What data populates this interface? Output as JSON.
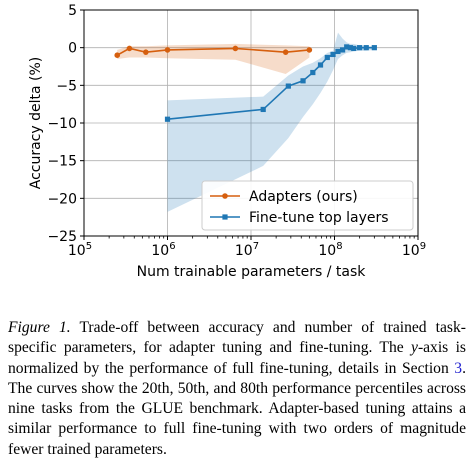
{
  "chart_data": {
    "type": "line",
    "xlabel": "Num trainable parameters / task",
    "ylabel": "Accuracy delta (%)",
    "xscale": "log",
    "xlim": [
      100000,
      1000000000
    ],
    "ylim": [
      -25,
      5
    ],
    "x_ticks": [
      100000,
      1000000,
      10000000,
      100000000,
      1000000000
    ],
    "x_tick_labels": [
      {
        "base": "10",
        "exp": "5"
      },
      {
        "base": "10",
        "exp": "6"
      },
      {
        "base": "10",
        "exp": "7"
      },
      {
        "base": "10",
        "exp": "8"
      },
      {
        "base": "10",
        "exp": "9"
      }
    ],
    "y_ticks": [
      5,
      0,
      -5,
      -10,
      -15,
      -20,
      -25
    ],
    "y_tick_labels": [
      "5",
      "0",
      "−5",
      "−10",
      "−15",
      "−20",
      "−25"
    ],
    "grid": true,
    "legend_position": "lower-right",
    "series": [
      {
        "name": "Adapters (ours)",
        "color": "#d65f0e",
        "marker": "circle",
        "x": [
          250000,
          350000,
          550000,
          1000000,
          6500000,
          26000000,
          50000000
        ],
        "y": [
          -1.0,
          -0.1,
          -0.6,
          -0.3,
          -0.1,
          -0.6,
          -0.3
        ],
        "band_low": [
          -1.5,
          -1.3,
          -1.3,
          -1.4,
          -1.6,
          -3.5,
          -1.3
        ],
        "band_high": [
          -0.3,
          0.2,
          0.2,
          0.3,
          0.5,
          0.3,
          0.2
        ]
      },
      {
        "name": "Fine-tune top layers",
        "color": "#1f77b4",
        "marker": "square",
        "x": [
          1000000,
          14000000,
          28000000,
          42000000,
          55000000,
          68000000,
          82000000,
          96000000,
          110000000,
          125000000,
          140000000,
          155000000,
          170000000,
          200000000,
          240000000,
          300000000
        ],
        "y": [
          -9.5,
          -8.2,
          -5.1,
          -4.4,
          -3.3,
          -2.3,
          -1.3,
          -0.9,
          -0.5,
          -0.3,
          0.1,
          0.0,
          -0.1,
          0.0,
          0.0,
          0.0
        ],
        "band_low": [
          -21.8,
          -15.7,
          -12.0,
          -9.2,
          -7.5,
          -6.0,
          -4.5,
          -3.0,
          -1.5,
          -1.0,
          -0.7,
          -0.6,
          -0.5,
          -0.4,
          -0.4,
          -0.3
        ],
        "band_high": [
          -7.0,
          -6.5,
          -3.7,
          -2.5,
          -2.0,
          -1.4,
          -0.7,
          -0.4,
          2.0,
          1.2,
          0.7,
          0.5,
          0.5,
          0.3,
          0.2,
          0.2
        ]
      }
    ]
  },
  "caption": {
    "label": "Figure 1.",
    "text_1": " Trade-off between accuracy and number of trained task-specific parameters, for adapter tuning and fine-tuning. The ",
    "axis_word": "y",
    "text_2": "-axis is normalized by the performance of full fine-tuning, details in Section ",
    "section_ref": "3",
    "text_3": ". The curves show the 20th, 50th, and 80th performance percentiles across nine tasks from the GLUE benchmark. Adapter-based tuning attains a similar performance to full fine-tuning with two orders of magnitude fewer trained parameters."
  }
}
